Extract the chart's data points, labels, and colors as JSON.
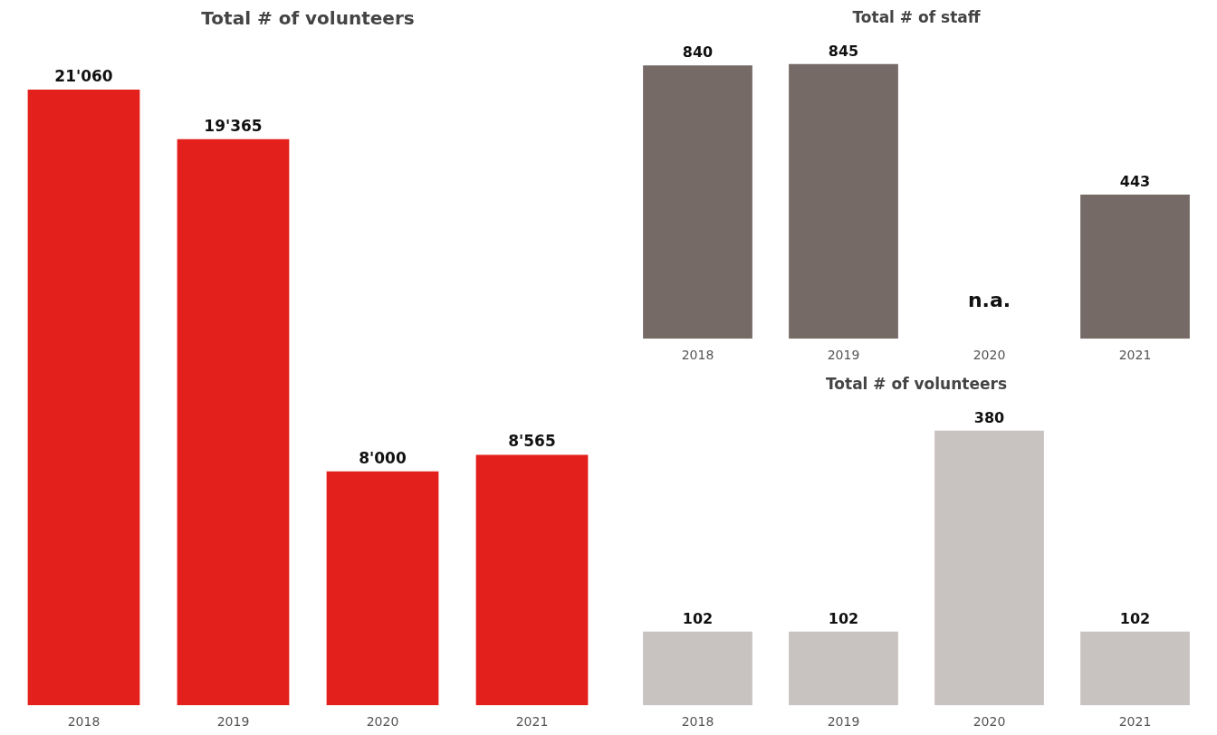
{
  "chart_data": [
    {
      "type": "bar",
      "title": "Total # of volunteers",
      "categories": [
        "2018",
        "2019",
        "2020",
        "2021"
      ],
      "values": [
        21060,
        19365,
        8000,
        8565
      ],
      "color": "#e3201b",
      "value_labels": [
        "21'060",
        "19'365",
        "8'000",
        "8'565"
      ]
    },
    {
      "type": "bar",
      "title": "Total # of staff",
      "categories": [
        "2018",
        "2019",
        "2020",
        "2021"
      ],
      "values": [
        840,
        845,
        null,
        443
      ],
      "color": "#756a66",
      "value_labels": [
        "840",
        "845",
        null,
        "443"
      ],
      "annotations": [
        "n.a."
      ]
    },
    {
      "type": "bar",
      "title": "Total # of volunteers",
      "categories": [
        "2018",
        "2019",
        "2020",
        "2021"
      ],
      "values": [
        102,
        102,
        380,
        102
      ],
      "color": "#c8c3c0",
      "value_labels": [
        "102",
        "102",
        "380",
        "102"
      ]
    }
  ]
}
